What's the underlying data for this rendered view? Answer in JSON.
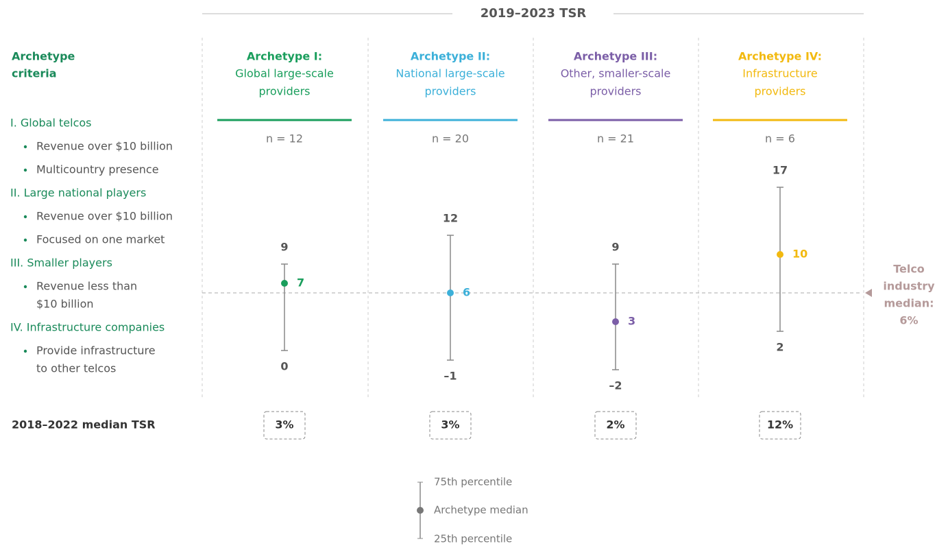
{
  "chart_data": {
    "type": "range",
    "title": "2019–2023 TSR",
    "criteria_title": [
      "Archetype",
      "criteria"
    ],
    "criteria": [
      {
        "title": "I. Global telcos",
        "items": [
          [
            "Revenue over $10 billion"
          ],
          [
            "Multicountry presence"
          ]
        ]
      },
      {
        "title": "II. Large national players",
        "items": [
          [
            "Revenue over $10 billion"
          ],
          [
            "Focused on one market"
          ]
        ]
      },
      {
        "title": "III. Smaller players",
        "items": [
          [
            "Revenue less than",
            "$10 billion"
          ]
        ]
      },
      {
        "title": "IV. Infrastructure companies",
        "items": [
          [
            "Provide infrastructure",
            "to other telcos"
          ]
        ]
      }
    ],
    "categories": [
      "Archetype I:",
      "Archetype II:",
      "Archetype III:",
      "Archetype IV:"
    ],
    "category_subtitles": [
      [
        "Global large-scale",
        "providers"
      ],
      [
        "National large-scale",
        "providers"
      ],
      [
        "Other, smaller-scale",
        "providers"
      ],
      [
        "Infrastructure",
        "providers"
      ]
    ],
    "colors": [
      "#1a9e5c",
      "#3cb0d9",
      "#7b5ea7",
      "#f2b90f"
    ],
    "sample_sizes": [
      "n = 12",
      "n = 20",
      "n = 21",
      "n = 6"
    ],
    "series": [
      {
        "name": "75th percentile",
        "values": [
          9,
          12,
          9,
          17
        ]
      },
      {
        "name": "Archetype median",
        "values": [
          7,
          6,
          3,
          10
        ]
      },
      {
        "name": "25th percentile",
        "values": [
          0,
          -1,
          -2,
          2
        ],
        "value_labels": [
          "0",
          "–1",
          "–2",
          "2"
        ]
      }
    ],
    "industry_median": {
      "label": [
        "Telco",
        "industry",
        "median:"
      ],
      "value": 6,
      "value_label": "6%"
    },
    "prior_median": {
      "label": "2018–2022 median TSR",
      "values": [
        3,
        3,
        2,
        12
      ],
      "value_labels": [
        "3%",
        "3%",
        "2%",
        "12%"
      ]
    }
  }
}
